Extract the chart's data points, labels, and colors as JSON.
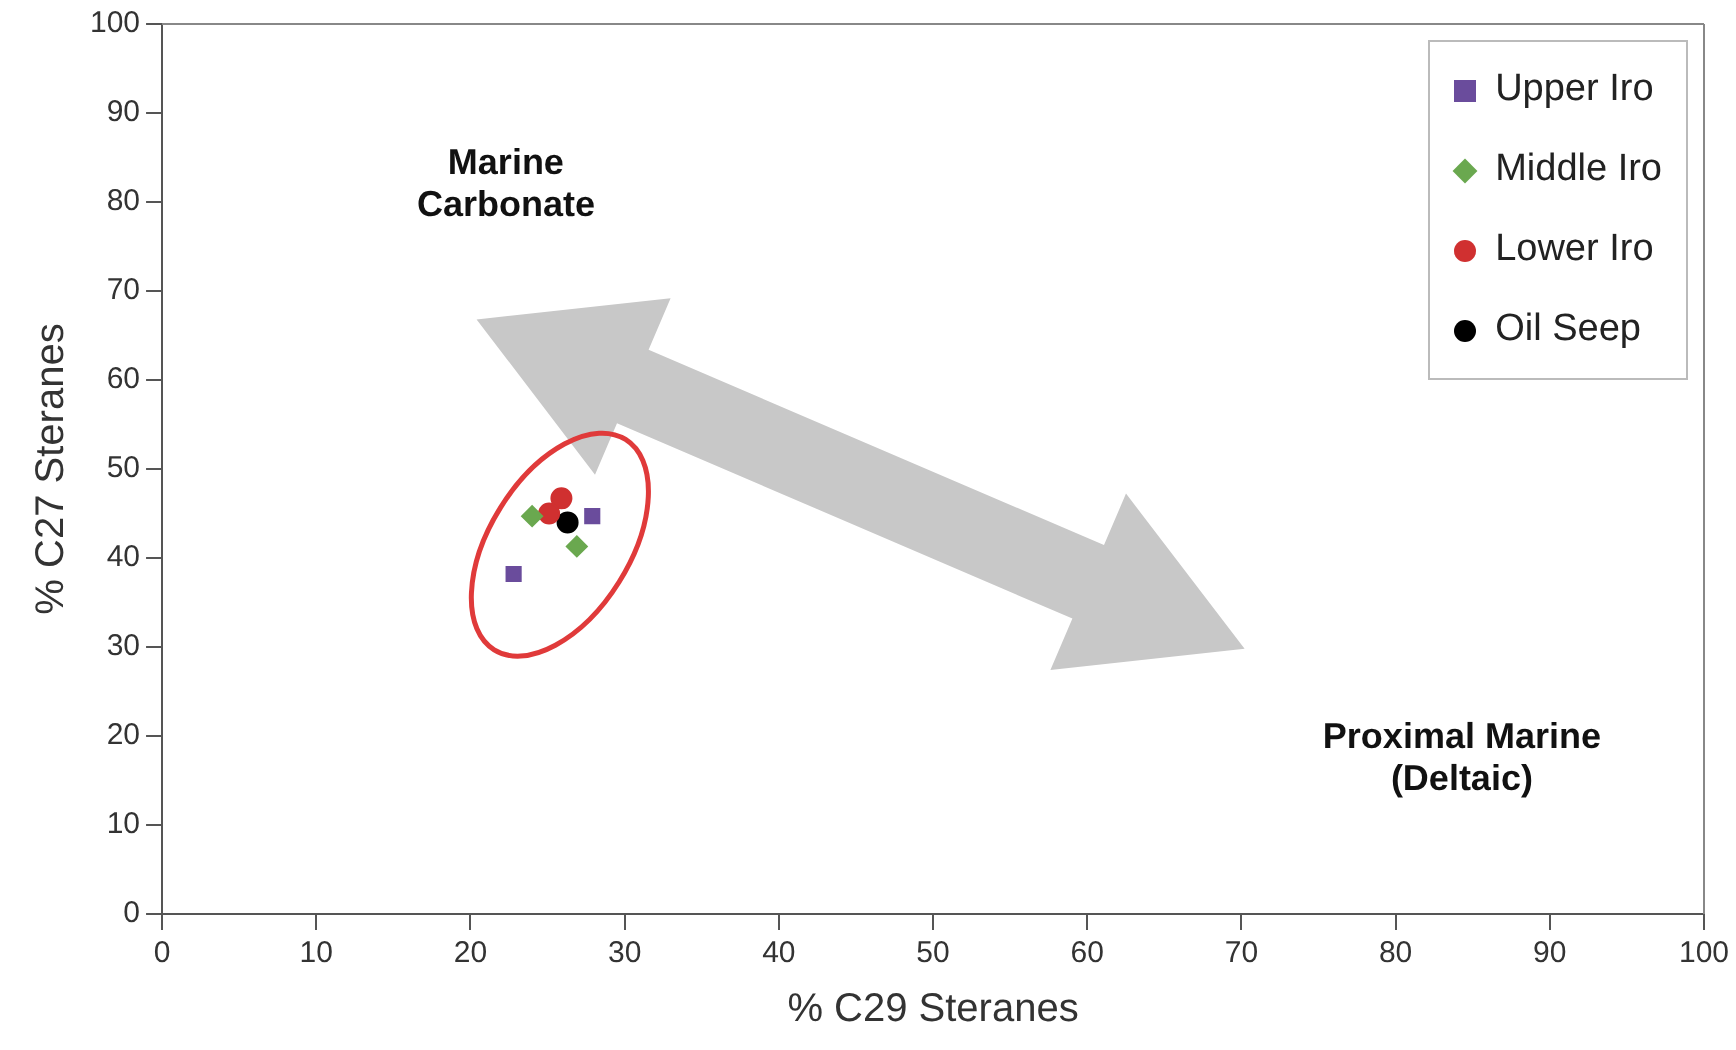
{
  "chart_data": {
    "type": "scatter",
    "xlabel": "% C29 Steranes",
    "ylabel": "% C27 Steranes",
    "xlim": [
      0,
      100
    ],
    "ylim": [
      0,
      100
    ],
    "xticks": [
      0,
      10,
      20,
      30,
      40,
      50,
      60,
      70,
      80,
      90,
      100
    ],
    "yticks": [
      0,
      10,
      20,
      30,
      40,
      50,
      60,
      70,
      80,
      90,
      100
    ],
    "grid": false,
    "legend": "top right",
    "series": [
      {
        "name": "Upper Iro",
        "color": "#6a4c9c",
        "marker": "square",
        "x": [
          27.9,
          22.8
        ],
        "values": [
          44.7,
          38.2
        ]
      },
      {
        "name": "Middle Iro",
        "color": "#6aa84f",
        "marker": "diamond",
        "x": [
          24.0,
          26.9
        ],
        "values": [
          44.7,
          41.3
        ]
      },
      {
        "name": "Lower Iro",
        "color": "#d03030",
        "marker": "circle",
        "x": [
          25.9,
          25.1
        ],
        "values": [
          46.7,
          45.0
        ]
      },
      {
        "name": "Oil Seep",
        "color": "#000000",
        "marker": "circle",
        "x": [
          26.3
        ],
        "values": [
          44.0
        ]
      }
    ],
    "annotations": [
      "Marine\nCarbonate",
      "Proximal Marine\n(Deltaic)"
    ]
  }
}
